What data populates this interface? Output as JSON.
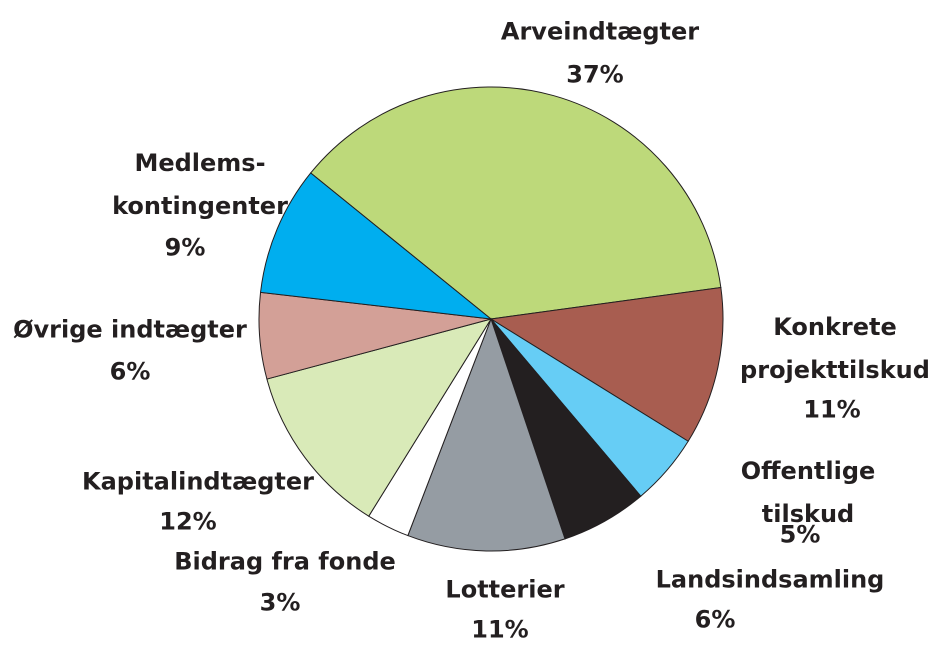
{
  "chart_data": {
    "type": "pie",
    "categories": [
      "Arveindtægter",
      "Konkrete\nprojekttilskud",
      "Offentlige tilskud",
      "Landsindsamling",
      "Lotterier",
      "Bidrag fra fonde",
      "Kapitalindtægter",
      "Øvrige indtægter",
      "Medlems-\nkontingenter"
    ],
    "values": [
      37,
      11,
      5,
      6,
      11,
      3,
      12,
      6,
      9
    ],
    "value_labels": [
      "37%",
      "11%",
      "5%",
      "6%",
      "11%",
      "3%",
      "12%",
      "6%",
      "9%"
    ],
    "colors": [
      "#bdd97a",
      "#a85d50",
      "#66cdf5",
      "#231f20",
      "#959ca3",
      "#ffffff",
      "#d9eab8",
      "#d3a097",
      "#00aeef"
    ]
  }
}
